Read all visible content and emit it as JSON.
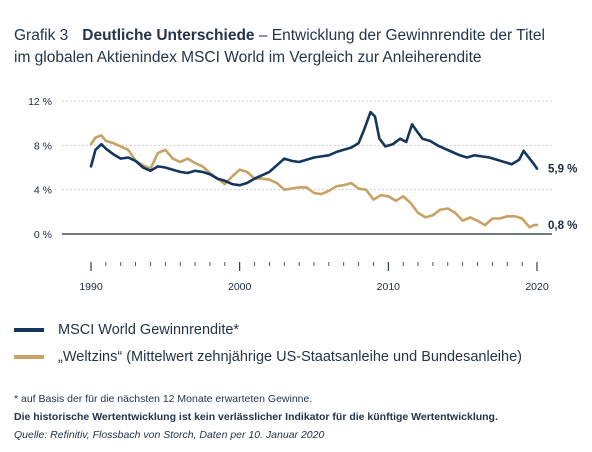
{
  "header": {
    "label": "Grafik 3",
    "title_bold": "Deutliche Unterschiede",
    "title_rest_line1": " – Entwicklung der Gewinnrendite der Titel",
    "title_line2": "im globalen Aktienindex MSCI World im Vergleich zur Anleiherendite"
  },
  "chart_data": {
    "type": "line",
    "x_range": [
      1989,
      2021
    ],
    "y_range": [
      0,
      12
    ],
    "y_ticks": [
      "12 %",
      "8 %",
      "4 %",
      "0 %"
    ],
    "y_tick_values": [
      12,
      8,
      4,
      0
    ],
    "x_ticks": [
      "1990",
      "2000",
      "2010",
      "2020"
    ],
    "x_tick_values": [
      1990,
      2000,
      2010,
      2020
    ],
    "grid": "horizontal dotted",
    "series": [
      {
        "name": "MSCI World Gewinnrendite*",
        "color": "#13365c",
        "end_label": "5,9 %",
        "points": [
          [
            1990.0,
            6.1
          ],
          [
            1990.3,
            7.6
          ],
          [
            1990.7,
            8.1
          ],
          [
            1991.0,
            7.7
          ],
          [
            1991.5,
            7.2
          ],
          [
            1992.0,
            6.8
          ],
          [
            1992.5,
            6.9
          ],
          [
            1993.0,
            6.6
          ],
          [
            1993.5,
            6.0
          ],
          [
            1994.0,
            5.7
          ],
          [
            1994.5,
            6.1
          ],
          [
            1995.0,
            6.0
          ],
          [
            1995.5,
            5.8
          ],
          [
            1996.0,
            5.6
          ],
          [
            1996.5,
            5.5
          ],
          [
            1997.0,
            5.7
          ],
          [
            1997.5,
            5.6
          ],
          [
            1998.0,
            5.4
          ],
          [
            1998.5,
            5.0
          ],
          [
            1999.0,
            4.8
          ],
          [
            1999.5,
            4.5
          ],
          [
            2000.0,
            4.4
          ],
          [
            2000.5,
            4.6
          ],
          [
            2001.0,
            5.0
          ],
          [
            2001.5,
            5.3
          ],
          [
            2002.0,
            5.6
          ],
          [
            2002.5,
            6.2
          ],
          [
            2003.0,
            6.8
          ],
          [
            2003.5,
            6.6
          ],
          [
            2004.0,
            6.5
          ],
          [
            2004.5,
            6.7
          ],
          [
            2005.0,
            6.9
          ],
          [
            2005.5,
            7.0
          ],
          [
            2006.0,
            7.1
          ],
          [
            2006.5,
            7.4
          ],
          [
            2007.0,
            7.6
          ],
          [
            2007.5,
            7.8
          ],
          [
            2008.0,
            8.2
          ],
          [
            2008.4,
            9.5
          ],
          [
            2008.8,
            11.0
          ],
          [
            2009.1,
            10.6
          ],
          [
            2009.4,
            8.6
          ],
          [
            2009.8,
            7.9
          ],
          [
            2010.3,
            8.1
          ],
          [
            2010.8,
            8.6
          ],
          [
            2011.2,
            8.3
          ],
          [
            2011.6,
            9.9
          ],
          [
            2011.9,
            9.3
          ],
          [
            2012.3,
            8.6
          ],
          [
            2012.8,
            8.4
          ],
          [
            2013.3,
            8.0
          ],
          [
            2013.8,
            7.7
          ],
          [
            2014.3,
            7.4
          ],
          [
            2014.8,
            7.1
          ],
          [
            2015.3,
            6.9
          ],
          [
            2015.8,
            7.1
          ],
          [
            2016.3,
            7.0
          ],
          [
            2016.8,
            6.9
          ],
          [
            2017.3,
            6.7
          ],
          [
            2017.8,
            6.5
          ],
          [
            2018.3,
            6.3
          ],
          [
            2018.8,
            6.7
          ],
          [
            2019.1,
            7.5
          ],
          [
            2019.5,
            6.8
          ],
          [
            2019.8,
            6.3
          ],
          [
            2020.0,
            5.9
          ]
        ]
      },
      {
        "name": "„Weltzins“ (Mittelwert zehnjährige US-Staatsanleihe und Bundesanleihe)",
        "color": "#c8a165",
        "end_label": "0,8 %",
        "points": [
          [
            1990.0,
            8.1
          ],
          [
            1990.3,
            8.7
          ],
          [
            1990.7,
            8.9
          ],
          [
            1991.0,
            8.4
          ],
          [
            1991.5,
            8.2
          ],
          [
            1992.0,
            7.9
          ],
          [
            1992.5,
            7.6
          ],
          [
            1993.0,
            6.6
          ],
          [
            1993.5,
            6.2
          ],
          [
            1994.0,
            5.9
          ],
          [
            1994.5,
            7.3
          ],
          [
            1995.0,
            7.6
          ],
          [
            1995.5,
            6.8
          ],
          [
            1996.0,
            6.5
          ],
          [
            1996.5,
            6.8
          ],
          [
            1997.0,
            6.4
          ],
          [
            1997.5,
            6.1
          ],
          [
            1998.0,
            5.5
          ],
          [
            1998.5,
            5.0
          ],
          [
            1999.0,
            4.5
          ],
          [
            1999.5,
            5.2
          ],
          [
            2000.0,
            5.8
          ],
          [
            2000.5,
            5.6
          ],
          [
            2001.0,
            5.0
          ],
          [
            2001.5,
            5.0
          ],
          [
            2002.0,
            4.9
          ],
          [
            2002.5,
            4.6
          ],
          [
            2003.0,
            4.0
          ],
          [
            2003.5,
            4.1
          ],
          [
            2004.0,
            4.2
          ],
          [
            2004.5,
            4.2
          ],
          [
            2005.0,
            3.7
          ],
          [
            2005.5,
            3.6
          ],
          [
            2006.0,
            3.9
          ],
          [
            2006.5,
            4.3
          ],
          [
            2007.0,
            4.4
          ],
          [
            2007.5,
            4.6
          ],
          [
            2008.0,
            4.1
          ],
          [
            2008.5,
            4.0
          ],
          [
            2009.0,
            3.1
          ],
          [
            2009.5,
            3.5
          ],
          [
            2010.0,
            3.4
          ],
          [
            2010.5,
            3.0
          ],
          [
            2011.0,
            3.4
          ],
          [
            2011.5,
            2.8
          ],
          [
            2012.0,
            1.9
          ],
          [
            2012.5,
            1.5
          ],
          [
            2013.0,
            1.7
          ],
          [
            2013.5,
            2.2
          ],
          [
            2014.0,
            2.3
          ],
          [
            2014.5,
            1.9
          ],
          [
            2015.0,
            1.2
          ],
          [
            2015.5,
            1.5
          ],
          [
            2016.0,
            1.2
          ],
          [
            2016.5,
            0.8
          ],
          [
            2017.0,
            1.4
          ],
          [
            2017.5,
            1.4
          ],
          [
            2018.0,
            1.6
          ],
          [
            2018.5,
            1.6
          ],
          [
            2019.0,
            1.4
          ],
          [
            2019.5,
            0.6
          ],
          [
            2019.8,
            0.8
          ],
          [
            2020.0,
            0.8
          ]
        ]
      }
    ]
  },
  "legend": [
    {
      "label": "MSCI World Gewinnrendite*",
      "color": "#13365c"
    },
    {
      "label": "„Weltzins“ (Mittelwert zehnjährige US-Staatsanleihe und Bundesanleihe)",
      "color": "#c8a165"
    }
  ],
  "footer": {
    "footnote": "* auf Basis der für die nächsten 12 Monate erwarteten Gewinne.",
    "disclaimer": "Die historische Wertentwicklung ist kein verlässlicher Indikator für die künftige Wertentwicklung.",
    "source": "Quelle: Refinitiv, Flossbach von Storch, Daten per 10. Januar 2020"
  }
}
